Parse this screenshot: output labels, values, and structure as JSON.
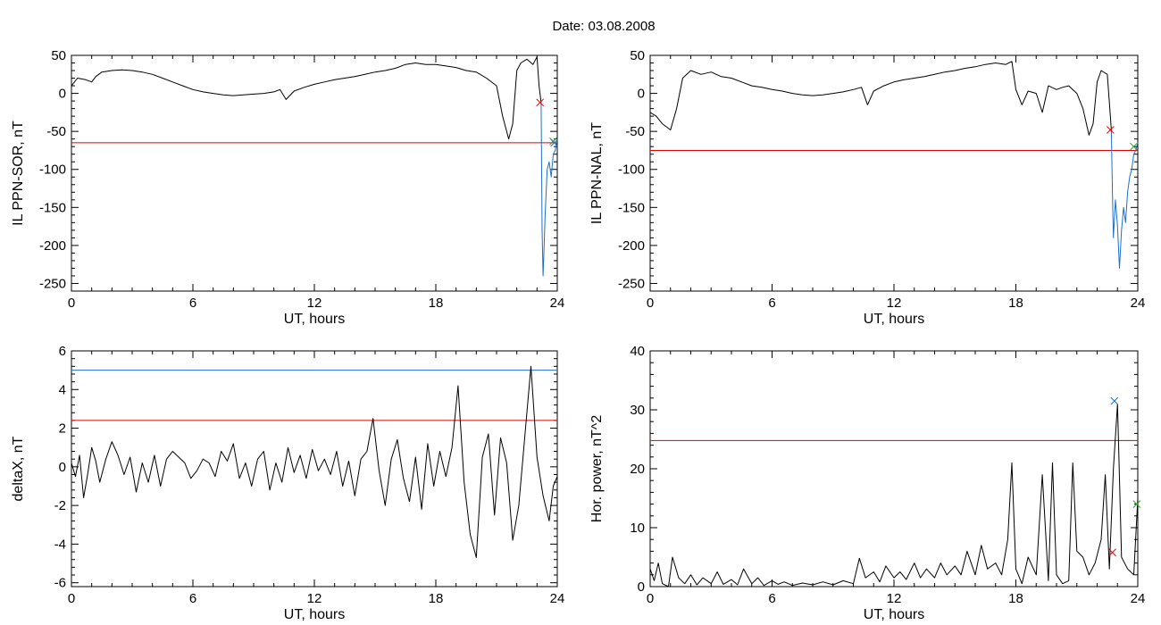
{
  "figure": {
    "title": "Date:  03.08.2008"
  },
  "chart_data": [
    {
      "type": "line",
      "id": "p1",
      "xlabel": "UT, hours",
      "ylabel": "IL PPN-SOR, nT",
      "xlim": [
        0,
        24
      ],
      "ylim": [
        -260,
        50
      ],
      "xticks": [
        0,
        6,
        12,
        18,
        24
      ],
      "yticks": [
        50,
        0,
        -50,
        -100,
        -150,
        -200,
        -250
      ],
      "hlines": [
        {
          "y": -65,
          "color": "#e00000"
        }
      ],
      "series": [
        {
          "color": "#000000",
          "x": [
            0,
            0.3,
            0.7,
            1.0,
            1.2,
            1.5,
            2.0,
            2.5,
            3.0,
            3.5,
            4.0,
            4.5,
            5.0,
            5.5,
            6.0,
            6.5,
            7.0,
            7.5,
            8.0,
            8.5,
            9.0,
            9.5,
            10.0,
            10.3,
            10.6,
            11.0,
            11.5,
            12.0,
            12.5,
            13.0,
            13.5,
            14.0,
            14.5,
            15.0,
            15.5,
            16.0,
            16.5,
            17.0,
            17.5,
            18.0,
            18.5,
            19.0,
            19.5,
            20.0,
            20.5,
            21.0,
            21.3,
            21.6,
            21.8,
            22.0,
            22.2,
            22.5,
            22.8,
            23.0,
            23.1,
            23.2
          ],
          "y": [
            10,
            20,
            18,
            15,
            22,
            28,
            30,
            31,
            30,
            28,
            25,
            20,
            15,
            10,
            5,
            2,
            0,
            -2,
            -3,
            -2,
            -1,
            0,
            2,
            5,
            -8,
            3,
            8,
            12,
            15,
            18,
            20,
            22,
            25,
            28,
            30,
            33,
            38,
            40,
            38,
            38,
            36,
            34,
            30,
            28,
            20,
            10,
            -30,
            -60,
            -40,
            30,
            40,
            45,
            38,
            48,
            10,
            -12
          ]
        },
        {
          "color": "#1f6fd1",
          "x": [
            23.2,
            23.25,
            23.3,
            23.35,
            23.4,
            23.5,
            23.6,
            23.7,
            23.8,
            23.9,
            24.0
          ],
          "y": [
            -12,
            -180,
            -240,
            -200,
            -160,
            -100,
            -90,
            -110,
            -80,
            -75,
            -60
          ]
        }
      ],
      "markers": [
        {
          "x": 23.15,
          "y": -12,
          "color": "#e00000"
        },
        {
          "x": 23.8,
          "y": -63,
          "color": "#2da02d"
        },
        {
          "x": 23.85,
          "y": -65,
          "color": "#1f6fd1"
        }
      ]
    },
    {
      "type": "line",
      "id": "p2",
      "xlabel": "UT, hours",
      "ylabel": "IL PPN-NAL, nT",
      "xlim": [
        0,
        24
      ],
      "ylim": [
        -260,
        50
      ],
      "xticks": [
        0,
        6,
        12,
        18,
        24
      ],
      "yticks": [
        50,
        0,
        -50,
        -100,
        -150,
        -200,
        -250
      ],
      "hlines": [
        {
          "y": -75,
          "color": "#e00000"
        }
      ],
      "series": [
        {
          "color": "#000000",
          "x": [
            0,
            0.3,
            0.6,
            1.0,
            1.3,
            1.6,
            2.0,
            2.5,
            3.0,
            3.5,
            4.0,
            4.5,
            5.0,
            5.5,
            6.0,
            6.5,
            7.0,
            7.5,
            8.0,
            8.5,
            9.0,
            9.5,
            10.0,
            10.4,
            10.7,
            11.0,
            11.5,
            12.0,
            12.5,
            13.0,
            13.5,
            14.0,
            14.5,
            15.0,
            15.5,
            16.0,
            16.5,
            17.0,
            17.5,
            17.8,
            18.0,
            18.3,
            18.6,
            19.0,
            19.3,
            19.6,
            20.0,
            20.3,
            20.6,
            21.0,
            21.3,
            21.6,
            21.8,
            22.0,
            22.2,
            22.5,
            22.7
          ],
          "y": [
            -25,
            -30,
            -40,
            -48,
            -20,
            20,
            30,
            25,
            28,
            22,
            20,
            15,
            10,
            8,
            5,
            3,
            0,
            -2,
            -3,
            -2,
            0,
            2,
            5,
            8,
            -15,
            3,
            10,
            15,
            18,
            20,
            22,
            25,
            28,
            30,
            33,
            35,
            38,
            40,
            38,
            42,
            5,
            -15,
            3,
            0,
            -25,
            10,
            5,
            8,
            10,
            0,
            -20,
            -55,
            -40,
            15,
            30,
            25,
            -48
          ]
        },
        {
          "color": "#1f6fd1",
          "x": [
            22.7,
            22.75,
            22.8,
            22.9,
            23.0,
            23.1,
            23.2,
            23.3,
            23.4,
            23.5,
            23.6,
            23.7,
            23.8,
            23.9,
            24.0
          ],
          "y": [
            -48,
            -130,
            -190,
            -140,
            -175,
            -230,
            -180,
            -150,
            -170,
            -130,
            -110,
            -100,
            -80,
            -75,
            -65
          ]
        }
      ],
      "markers": [
        {
          "x": 22.65,
          "y": -48,
          "color": "#e00000"
        },
        {
          "x": 23.8,
          "y": -70,
          "color": "#2da02d"
        }
      ]
    },
    {
      "type": "line",
      "id": "p3",
      "xlabel": "UT, hours",
      "ylabel": "deltaX, nT",
      "xlim": [
        0,
        24
      ],
      "ylim": [
        -6.2,
        6
      ],
      "xticks": [
        0,
        6,
        12,
        18,
        24
      ],
      "yticks": [
        6,
        4,
        2,
        0,
        -2,
        -4,
        -6
      ],
      "hlines": [
        {
          "y": 5.0,
          "color": "#1f6fd1"
        },
        {
          "y": 2.4,
          "color": "#e00000"
        }
      ],
      "series": [
        {
          "color": "#000000",
          "x": [
            0,
            0.2,
            0.4,
            0.6,
            0.8,
            1.0,
            1.2,
            1.4,
            1.7,
            2.0,
            2.3,
            2.6,
            2.9,
            3.2,
            3.5,
            3.8,
            4.1,
            4.4,
            4.7,
            5.0,
            5.3,
            5.6,
            5.9,
            6.2,
            6.5,
            6.8,
            7.1,
            7.4,
            7.7,
            8.0,
            8.3,
            8.6,
            8.9,
            9.2,
            9.5,
            9.8,
            10.1,
            10.4,
            10.7,
            11.0,
            11.3,
            11.6,
            11.9,
            12.2,
            12.5,
            12.8,
            13.1,
            13.4,
            13.7,
            14.0,
            14.3,
            14.6,
            14.9,
            15.2,
            15.5,
            15.8,
            16.1,
            16.4,
            16.7,
            17.0,
            17.3,
            17.6,
            17.9,
            18.2,
            18.5,
            18.8,
            19.1,
            19.4,
            19.7,
            20.0,
            20.3,
            20.6,
            20.9,
            21.2,
            21.5,
            21.8,
            22.1,
            22.4,
            22.7,
            23.0,
            23.3,
            23.6,
            23.8,
            24.0
          ],
          "y": [
            0.2,
            -0.5,
            0.6,
            -1.6,
            -0.4,
            1.0,
            0.3,
            -0.8,
            0.4,
            1.3,
            0.6,
            -0.4,
            0.5,
            -1.3,
            0.2,
            -0.8,
            0.6,
            -1.0,
            0.4,
            0.8,
            0.5,
            0.2,
            -0.6,
            -0.2,
            0.4,
            0.2,
            -0.5,
            0.8,
            0.3,
            1.2,
            -0.6,
            0.2,
            -1.0,
            0.4,
            0.8,
            -1.2,
            0.2,
            -0.8,
            1.0,
            -0.3,
            0.6,
            -0.6,
            0.9,
            -0.2,
            0.4,
            -0.4,
            0.8,
            -1.0,
            0.3,
            -1.5,
            0.4,
            0.8,
            2.5,
            -0.2,
            -2.0,
            0.4,
            1.4,
            -0.6,
            -1.8,
            0.5,
            -2.2,
            1.2,
            -1.0,
            0.8,
            -0.5,
            1.0,
            4.2,
            -0.8,
            -3.5,
            -4.7,
            0.5,
            1.7,
            -2.5,
            1.5,
            0.2,
            -3.8,
            -2.0,
            1.6,
            5.2,
            0.5,
            -1.5,
            -2.8,
            -1.0,
            -0.5
          ]
        }
      ],
      "markers": []
    },
    {
      "type": "line",
      "id": "p4",
      "xlabel": "UT, hours",
      "ylabel": "Hor. power, nT^2",
      "xlim": [
        0,
        24
      ],
      "ylim": [
        0,
        40
      ],
      "xticks": [
        0,
        6,
        12,
        18,
        24
      ],
      "yticks": [
        40,
        30,
        20,
        10,
        0
      ],
      "hlines": [
        {
          "y": 24.8,
          "color": "#e00000"
        }
      ],
      "series": [
        {
          "color": "#000000",
          "x": [
            0,
            0.2,
            0.4,
            0.6,
            0.9,
            1.1,
            1.4,
            1.7,
            2.0,
            2.3,
            2.6,
            3.0,
            3.3,
            3.6,
            4.0,
            4.3,
            4.6,
            5.0,
            5.3,
            5.6,
            6.0,
            6.3,
            6.6,
            7.0,
            7.5,
            8.0,
            8.5,
            9.0,
            9.5,
            10.0,
            10.3,
            10.6,
            11.0,
            11.3,
            11.6,
            12.0,
            12.3,
            12.6,
            13.0,
            13.3,
            13.6,
            14.0,
            14.3,
            14.6,
            15.0,
            15.3,
            15.6,
            16.0,
            16.3,
            16.6,
            17.0,
            17.3,
            17.6,
            17.8,
            18.0,
            18.3,
            18.6,
            19.0,
            19.3,
            19.6,
            19.8,
            20.0,
            20.3,
            20.6,
            20.8,
            21.0,
            21.3,
            21.6,
            21.9,
            22.2,
            22.4,
            22.6,
            22.8,
            23.0,
            23.2,
            23.5,
            23.8,
            24.0
          ],
          "y": [
            3,
            1,
            4,
            0.5,
            0,
            5,
            1.5,
            0.5,
            2,
            0.3,
            1.5,
            0.5,
            2.5,
            0.4,
            1.2,
            0.3,
            3,
            0.5,
            1.5,
            0.2,
            1,
            0.4,
            0.8,
            0.2,
            0.6,
            0.3,
            0.8,
            0.3,
            1.0,
            0.5,
            4.8,
            1.5,
            2.5,
            0.8,
            3.5,
            1.5,
            2.5,
            1.2,
            4,
            1.5,
            3,
            1.5,
            4,
            2,
            3.5,
            2,
            6,
            2,
            7,
            3,
            4,
            2,
            8,
            21,
            3,
            0.5,
            5,
            2,
            19,
            1,
            21,
            2,
            0.5,
            1,
            21,
            6,
            5,
            2,
            4,
            8,
            19,
            3,
            20,
            31,
            5,
            3,
            2,
            15
          ]
        }
      ],
      "markers": [
        {
          "x": 22.85,
          "y": 31.5,
          "color": "#1f6fd1"
        },
        {
          "x": 22.75,
          "y": 5.8,
          "color": "#e00000"
        },
        {
          "x": 23.95,
          "y": 14,
          "color": "#2da02d"
        }
      ]
    }
  ]
}
